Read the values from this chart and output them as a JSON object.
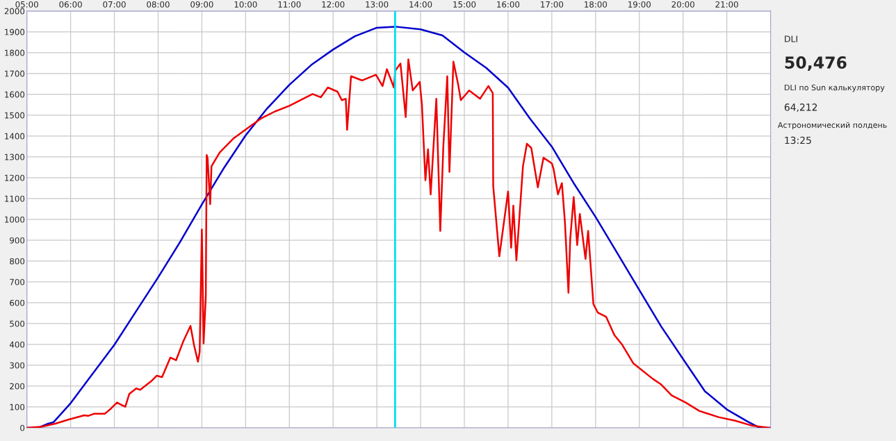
{
  "chart_data": {
    "type": "line",
    "xlim": [
      5,
      22
    ],
    "ylim": [
      0,
      2000
    ],
    "xticks": [
      {
        "value": 5,
        "label": "05:00"
      },
      {
        "value": 6,
        "label": "06:00"
      },
      {
        "value": 7,
        "label": "07:00"
      },
      {
        "value": 8,
        "label": "08:00"
      },
      {
        "value": 9,
        "label": "09:00"
      },
      {
        "value": 10,
        "label": "10:00"
      },
      {
        "value": 11,
        "label": "11:00"
      },
      {
        "value": 12,
        "label": "12:00"
      },
      {
        "value": 13,
        "label": "13:00"
      },
      {
        "value": 14,
        "label": "14:00"
      },
      {
        "value": 15,
        "label": "15:00"
      },
      {
        "value": 16,
        "label": "16:00"
      },
      {
        "value": 17,
        "label": "17:00"
      },
      {
        "value": 18,
        "label": "18:00"
      },
      {
        "value": 19,
        "label": "19:00"
      },
      {
        "value": 20,
        "label": "20:00"
      },
      {
        "value": 21,
        "label": "21:00"
      }
    ],
    "yticks": [
      0,
      100,
      200,
      300,
      400,
      500,
      600,
      700,
      800,
      900,
      1000,
      1100,
      1200,
      1300,
      1400,
      1500,
      1600,
      1700,
      1800,
      1900,
      2000
    ],
    "grid": true,
    "series": [
      {
        "color": "#0000cc",
        "x": [
          5.0,
          5.26,
          5.49,
          5.61,
          6.0,
          6.49,
          7.0,
          7.5,
          8.0,
          8.5,
          9.0,
          9.49,
          10.0,
          10.49,
          11.0,
          11.5,
          12.0,
          12.5,
          13.0,
          13.42,
          14.0,
          14.5,
          15.0,
          15.5,
          16.0,
          16.5,
          17.0,
          17.5,
          18.0,
          18.5,
          19.0,
          19.5,
          20.0,
          20.5,
          21.0,
          21.5,
          21.75,
          22.0
        ],
        "values": [
          0,
          0,
          20,
          27,
          118,
          256,
          398,
          560,
          722,
          891,
          1072,
          1242,
          1403,
          1532,
          1646,
          1741,
          1815,
          1879,
          1920,
          1925,
          1912,
          1883,
          1801,
          1727,
          1632,
          1484,
          1349,
          1174,
          1012,
          837,
          661,
          486,
          330,
          175,
          88,
          27,
          0,
          0
        ]
      },
      {
        "color": "#ee0000",
        "x": [
          5.0,
          5.33,
          5.65,
          5.96,
          6.02,
          6.31,
          6.4,
          6.53,
          6.78,
          6.9,
          7.06,
          7.18,
          7.25,
          7.34,
          7.5,
          7.59,
          7.84,
          7.97,
          8.09,
          8.28,
          8.41,
          8.57,
          8.74,
          8.82,
          8.91,
          8.95,
          9.0,
          9.04,
          9.09,
          9.11,
          9.13,
          9.19,
          9.22,
          9.41,
          9.73,
          10.04,
          10.35,
          10.67,
          11.0,
          11.53,
          11.72,
          11.88,
          12.1,
          12.2,
          12.29,
          12.32,
          12.41,
          12.66,
          12.98,
          13.13,
          13.23,
          13.39,
          13.42,
          13.54,
          13.66,
          13.72,
          13.82,
          13.98,
          14.03,
          14.11,
          14.17,
          14.23,
          14.36,
          14.45,
          14.52,
          14.61,
          14.66,
          14.75,
          14.86,
          14.92,
          15.11,
          15.36,
          15.55,
          15.65,
          15.66,
          15.8,
          16.0,
          16.07,
          16.12,
          16.19,
          16.34,
          16.43,
          16.53,
          16.68,
          16.81,
          17.0,
          17.04,
          17.14,
          17.23,
          17.3,
          17.38,
          17.42,
          17.5,
          17.58,
          17.64,
          17.77,
          17.83,
          17.95,
          18.05,
          18.24,
          18.43,
          18.61,
          18.86,
          19.3,
          19.49,
          19.74,
          20.06,
          20.37,
          20.81,
          21.19,
          21.56,
          21.97
        ],
        "values": [
          0,
          5,
          20,
          40,
          43,
          60,
          57,
          67,
          67,
          88,
          121,
          108,
          101,
          162,
          189,
          182,
          223,
          250,
          243,
          337,
          324,
          412,
          489,
          398,
          317,
          364,
          951,
          405,
          634,
          1309,
          1296,
          1073,
          1255,
          1322,
          1390,
          1437,
          1484,
          1518,
          1545,
          1602,
          1586,
          1633,
          1613,
          1572,
          1579,
          1430,
          1687,
          1667,
          1694,
          1640,
          1721,
          1633,
          1714,
          1748,
          1491,
          1768,
          1619,
          1660,
          1552,
          1188,
          1336,
          1120,
          1579,
          945,
          1350,
          1687,
          1228,
          1757,
          1646,
          1572,
          1619,
          1579,
          1640,
          1606,
          1161,
          823,
          1134,
          864,
          1066,
          803,
          1255,
          1363,
          1343,
          1154,
          1296,
          1269,
          1242,
          1120,
          1174,
          985,
          648,
          904,
          1107,
          877,
          1026,
          810,
          945,
          594,
          553,
          533,
          445,
          398,
          310,
          236,
          209,
          155,
          121,
          81,
          51,
          34,
          11,
          0
        ]
      }
    ],
    "ref_lines": [
      {
        "axis": "x",
        "value": 13.4167,
        "color": "#00e0f0"
      }
    ],
    "annotations": [
      "DLI",
      "50,476",
      "DLI по Sun калькулятору",
      "64,212",
      "Астрономический полдень",
      "13:25"
    ]
  }
}
